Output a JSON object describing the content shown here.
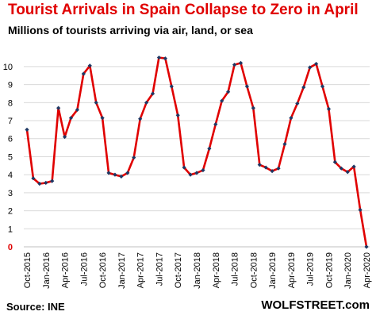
{
  "title": "Tourist Arrivals in Spain Collapse to Zero in April",
  "subtitle": "Millions of tourists arriving via air, land, or sea",
  "source": "Source: INE",
  "watermark": "WOLFSTREET.com",
  "colors": {
    "title": "#e00000",
    "line": "#e00000",
    "marker": "#1f3864",
    "grid": "#d9d9d9",
    "zero_label": "#e00000"
  },
  "chart_data": {
    "type": "line",
    "title": "Tourist Arrivals in Spain Collapse to Zero in April",
    "subtitle": "Millions of tourists arriving via air, land, or sea",
    "ylim": [
      0,
      10.7
    ],
    "yticks": [
      0,
      1,
      2,
      3,
      4,
      5,
      6,
      7,
      8,
      9,
      10
    ],
    "grid": "horizontal",
    "xtick_labels": [
      "Oct-2015",
      "Jan-2016",
      "Apr-2016",
      "Jul-2016",
      "Oct-2016",
      "Jan-2017",
      "Apr-2017",
      "Jul-2017",
      "Oct-2017",
      "Jan-2018",
      "Apr-2018",
      "Jul-2018",
      "Oct-2018",
      "Jan-2019",
      "Apr-2019",
      "Jul-2019",
      "Oct-2019",
      "Jan-2020",
      "Apr-2020"
    ],
    "x_start": "Oct-2015",
    "x_end": "Apr-2020",
    "x": [
      "Oct-2015",
      "Nov-2015",
      "Dec-2015",
      "Jan-2016",
      "Feb-2016",
      "Mar-2016",
      "Apr-2016",
      "May-2016",
      "Jun-2016",
      "Jul-2016",
      "Aug-2016",
      "Sep-2016",
      "Oct-2016",
      "Nov-2016",
      "Dec-2016",
      "Jan-2017",
      "Feb-2017",
      "Mar-2017",
      "Apr-2017",
      "May-2017",
      "Jun-2017",
      "Jul-2017",
      "Aug-2017",
      "Sep-2017",
      "Oct-2017",
      "Nov-2017",
      "Dec-2017",
      "Jan-2018",
      "Feb-2018",
      "Mar-2018",
      "Apr-2018",
      "May-2018",
      "Jun-2018",
      "Jul-2018",
      "Aug-2018",
      "Sep-2018",
      "Oct-2018",
      "Nov-2018",
      "Dec-2018",
      "Jan-2019",
      "Feb-2019",
      "Mar-2019",
      "Apr-2019",
      "May-2019",
      "Jun-2019",
      "Jul-2019",
      "Aug-2019",
      "Sep-2019",
      "Oct-2019",
      "Nov-2019",
      "Dec-2019",
      "Jan-2020",
      "Feb-2020",
      "Mar-2020",
      "Apr-2020"
    ],
    "values": [
      6.5,
      3.8,
      3.5,
      3.55,
      3.65,
      7.7,
      6.1,
      7.15,
      7.6,
      9.6,
      10.05,
      8.0,
      7.15,
      4.1,
      4.0,
      3.9,
      4.1,
      4.95,
      7.1,
      8.0,
      8.5,
      10.5,
      10.45,
      8.9,
      7.3,
      4.4,
      4.0,
      4.1,
      4.25,
      5.45,
      6.8,
      8.1,
      8.6,
      10.1,
      10.2,
      8.9,
      7.7,
      4.55,
      4.4,
      4.2,
      4.35,
      5.7,
      7.15,
      7.95,
      8.85,
      9.95,
      10.15,
      8.9,
      7.65,
      4.7,
      4.35,
      4.15,
      4.45,
      2.05,
      0.0
    ]
  }
}
